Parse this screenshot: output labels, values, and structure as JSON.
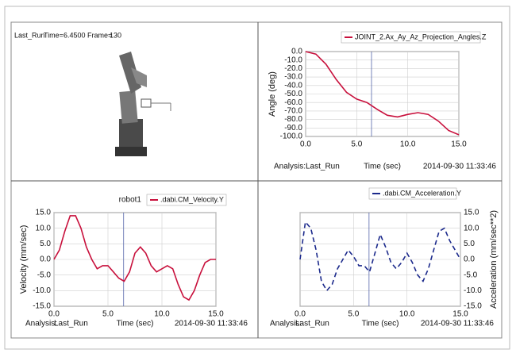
{
  "animation": {
    "run": "Last_Run",
    "time_label": "Time=",
    "time": {
      "value": 6.45,
      "label": "6.4500"
    },
    "frame_label": "Frame=",
    "frame": 130
  },
  "chart_data": [
    {
      "type": "line",
      "ylabel": "Angle (deg)",
      "xlabel": "Time (sec)",
      "analysis_label": "Analysis:",
      "run": "Last_Run",
      "timestamp": "2014-09-30 11:33:46",
      "grid": true,
      "y_axis_side": "left",
      "xlim": [
        0,
        15
      ],
      "xticks": [
        {
          "value": 0,
          "label": "0.0"
        },
        {
          "value": 5,
          "label": "5.0"
        },
        {
          "value": 10,
          "label": "10.0"
        },
        {
          "value": 15,
          "label": "15.0"
        }
      ],
      "ylim": [
        -100,
        0
      ],
      "yticks": [
        {
          "value": 0,
          "label": "0.0"
        },
        {
          "value": -10,
          "label": "-10.0"
        },
        {
          "value": -20,
          "label": "-20.0"
        },
        {
          "value": -30,
          "label": "-30.0"
        },
        {
          "value": -40,
          "label": "-40.0"
        },
        {
          "value": -50,
          "label": "-50.0"
        },
        {
          "value": -60,
          "label": "-60.0"
        },
        {
          "value": -70,
          "label": "-70.0"
        },
        {
          "value": -80,
          "label": "-80.0"
        },
        {
          "value": -90,
          "label": "-90.0"
        },
        {
          "value": -100,
          "label": "-100.0"
        }
      ],
      "x": [
        0,
        1,
        2,
        3,
        4,
        5,
        6,
        7,
        8,
        9,
        10,
        11,
        12,
        13,
        14,
        15
      ],
      "series": [
        {
          "name": "JOINT_2.Ax_Ay_Az_Projection_Angles.Z",
          "color": "#c8103c",
          "line_style": "solid",
          "values": [
            0,
            -3,
            -15,
            -33,
            -48,
            -56,
            -60,
            -68,
            -75,
            -77,
            -74,
            -72,
            -74,
            -82,
            -93,
            -98
          ]
        }
      ]
    },
    {
      "type": "line",
      "title": "robot1",
      "ylabel": "Velocity (mm/sec)",
      "xlabel": "Time (sec)",
      "analysis_label": "Analysis:",
      "run": "Last_Run",
      "timestamp": "2014-09-30 11:33:46",
      "grid": true,
      "y_axis_side": "left",
      "xlim": [
        0,
        15
      ],
      "xticks": [
        {
          "value": 0,
          "label": "0.0"
        },
        {
          "value": 5,
          "label": "5.0"
        },
        {
          "value": 10,
          "label": "10.0"
        },
        {
          "value": 15,
          "label": "15.0"
        }
      ],
      "ylim": [
        -15,
        15
      ],
      "yticks": [
        {
          "value": 15,
          "label": "15.0"
        },
        {
          "value": 10,
          "label": "10.0"
        },
        {
          "value": 5,
          "label": "5.0"
        },
        {
          "value": 0,
          "label": "0.0"
        },
        {
          "value": -5,
          "label": "-5.0"
        },
        {
          "value": -10,
          "label": "-10.0"
        },
        {
          "value": -15,
          "label": "-15.0"
        }
      ],
      "x": [
        0,
        0.5,
        1,
        1.5,
        2,
        2.5,
        3,
        3.5,
        4,
        4.5,
        5,
        5.5,
        6,
        6.5,
        7,
        7.5,
        8,
        8.5,
        9,
        9.5,
        10,
        10.5,
        11,
        11.5,
        12,
        12.5,
        13,
        13.5,
        14,
        14.5,
        15
      ],
      "series": [
        {
          "name": ".dabi.CM_Velocity.Y",
          "color": "#c8103c",
          "line_style": "solid",
          "values": [
            0,
            3,
            9,
            14,
            14,
            10,
            4,
            0,
            -3,
            -2,
            -2,
            -4,
            -6,
            -7,
            -4,
            2,
            4,
            2,
            -2,
            -4,
            -3,
            -2,
            -3,
            -8,
            -12,
            -13,
            -10,
            -5,
            -1,
            0,
            0
          ]
        }
      ]
    },
    {
      "type": "line",
      "ylabel": "Acceleration (mm/sec**2)",
      "xlabel": "Time (sec)",
      "analysis_label": "Analysis:",
      "run": "Last_Run",
      "timestamp": "2014-09-30 11:33:46",
      "grid": true,
      "y_axis_side": "right",
      "xlim": [
        0,
        15
      ],
      "xticks": [
        {
          "value": 0,
          "label": "0.0"
        },
        {
          "value": 5,
          "label": "5.0"
        },
        {
          "value": 10,
          "label": "10.0"
        },
        {
          "value": 15,
          "label": "15.0"
        }
      ],
      "ylim": [
        -15,
        15
      ],
      "yticks": [
        {
          "value": 15,
          "label": "15.0"
        },
        {
          "value": 10,
          "label": "10.0"
        },
        {
          "value": 5,
          "label": "5.0"
        },
        {
          "value": 0,
          "label": "0.0"
        },
        {
          "value": -5,
          "label": "-5.0"
        },
        {
          "value": -10,
          "label": "-10.0"
        },
        {
          "value": -15,
          "label": "-15.0"
        }
      ],
      "x": [
        0,
        0.5,
        1,
        1.5,
        2,
        2.5,
        3,
        3.5,
        4,
        4.5,
        5,
        5.5,
        6,
        6.5,
        7,
        7.5,
        8,
        8.5,
        9,
        9.5,
        10,
        10.5,
        11,
        11.5,
        12,
        12.5,
        13,
        13.5,
        14,
        14.5,
        15
      ],
      "series": [
        {
          "name": ".dabi.CM_Acceleration.Y",
          "color": "#1c2a8c",
          "line_style": "dashed",
          "values": [
            0,
            12,
            10,
            3,
            -7,
            -10,
            -8,
            -3,
            0,
            3,
            1,
            -2,
            -2,
            -4,
            2,
            8,
            4,
            -1,
            -3,
            -1,
            2,
            -1,
            -5,
            -7,
            -3,
            3,
            9,
            10,
            6,
            3,
            0
          ]
        }
      ]
    }
  ]
}
